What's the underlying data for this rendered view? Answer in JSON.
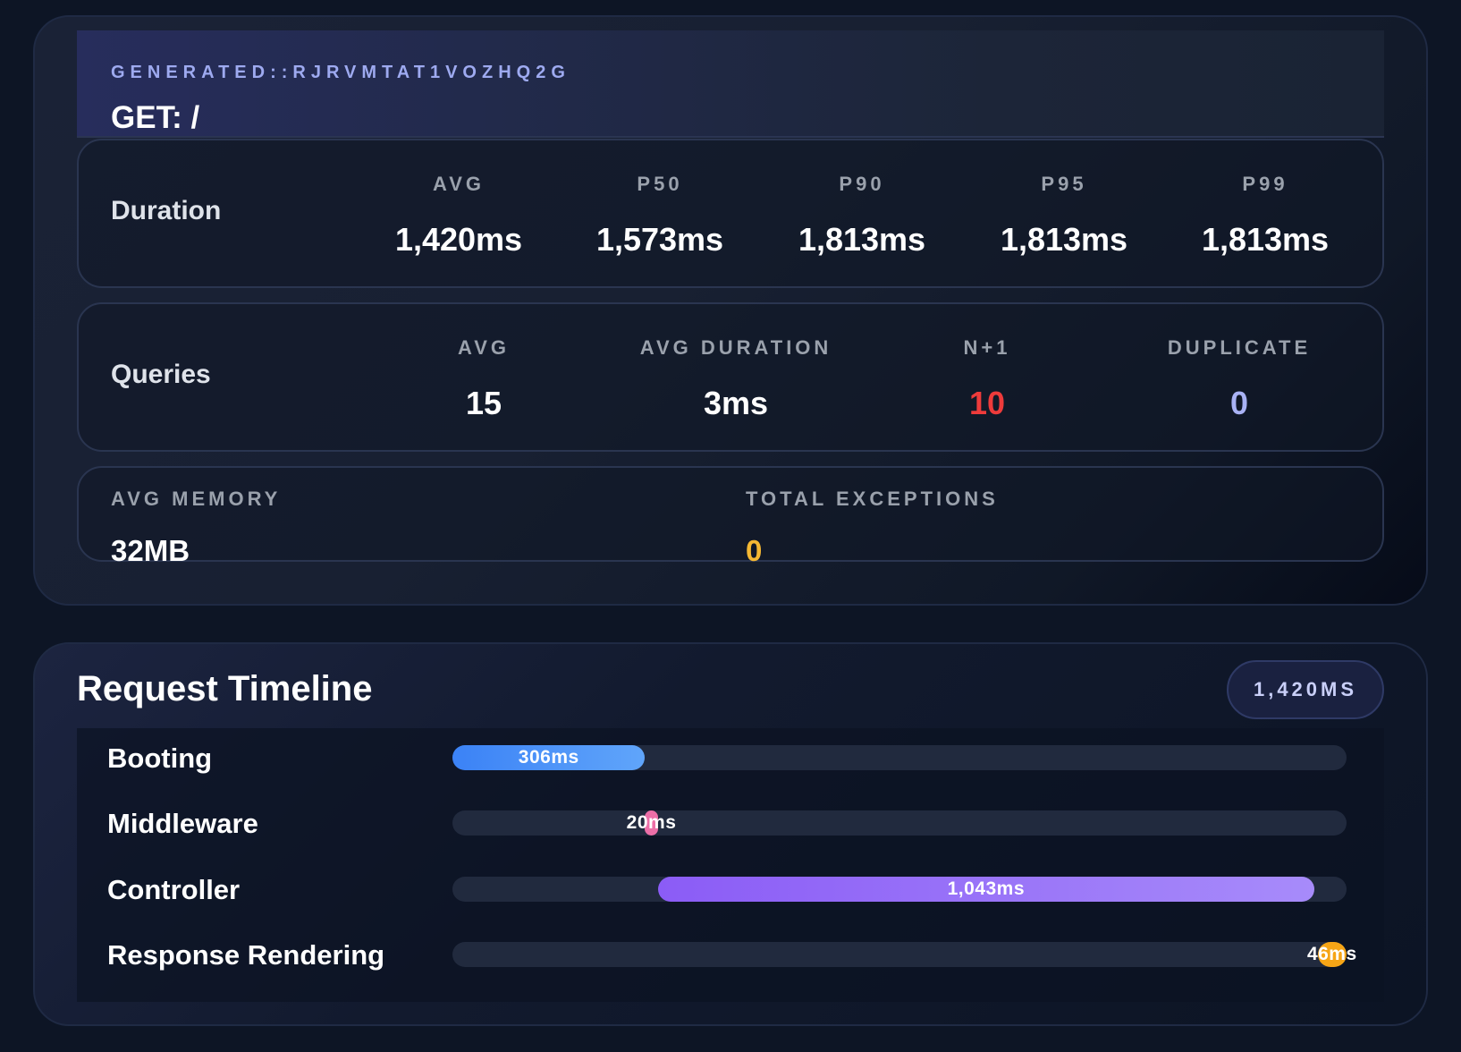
{
  "route": {
    "id": "GENERATED::RJRVMTAT1VOZHQ2G",
    "title": "GET: /"
  },
  "duration": {
    "label": "Duration",
    "metrics": [
      {
        "label": "AVG",
        "value": "1,420ms"
      },
      {
        "label": "P50",
        "value": "1,573ms"
      },
      {
        "label": "P90",
        "value": "1,813ms"
      },
      {
        "label": "P95",
        "value": "1,813ms"
      },
      {
        "label": "P99",
        "value": "1,813ms"
      }
    ]
  },
  "queries": {
    "label": "Queries",
    "metrics": [
      {
        "label": "AVG",
        "value": "15"
      },
      {
        "label": "AVG DURATION",
        "value": "3ms"
      },
      {
        "label": "N+1",
        "value": "10"
      },
      {
        "label": "DUPLICATE",
        "value": "0"
      }
    ]
  },
  "misc": {
    "memory": {
      "label": "AVG MEMORY",
      "value": "32MB"
    },
    "exceptions": {
      "label": "TOTAL EXCEPTIONS",
      "value": "0"
    }
  },
  "timeline": {
    "title": "Request Timeline",
    "total": "1,420MS",
    "total_ms": 1420,
    "stages": [
      {
        "label": "Booting",
        "duration": "306ms",
        "start_ms": 0,
        "ms": 306,
        "color": "#3b82f6"
      },
      {
        "label": "Middleware",
        "duration": "20ms",
        "start_ms": 306,
        "ms": 20,
        "color": "#ec6fa8"
      },
      {
        "label": "Controller",
        "duration": "1,043ms",
        "start_ms": 326,
        "ms": 1043,
        "color": "#8b5cf6"
      },
      {
        "label": "Response Rendering",
        "duration": "46ms",
        "start_ms": 1374,
        "ms": 46,
        "color": "#f6a516"
      }
    ]
  },
  "colors": {
    "danger": "#ee3b3b",
    "accent": "#a9b2f4",
    "warning": "#f5b833"
  }
}
